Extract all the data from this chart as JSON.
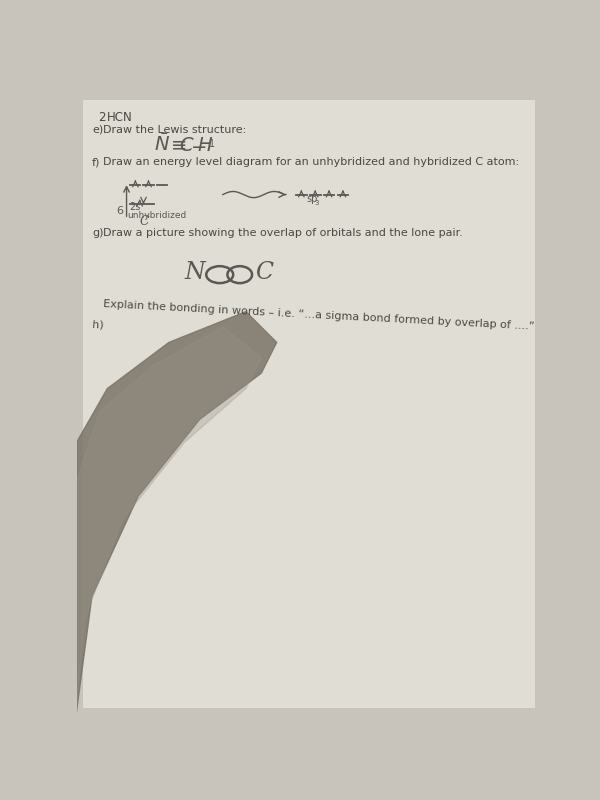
{
  "bg_color_top": "#c8c4bc",
  "bg_color_paper": "#e0ddd5",
  "shadow_color": "#7a7468",
  "text_color": "#4a4844",
  "handwriting_color": "#5a5855",
  "heading_number": "2",
  "heading_subject": "HCN",
  "part_e_label": "e)",
  "part_e_text": "Draw the Lewis structure:",
  "part_f_label": "f)",
  "part_f_text": "Draw an energy level diagram for an unhybridized and hybridized C atom:",
  "part_g_label": "g)",
  "part_g_text": "Draw a picture showing the overlap of orbitals and the lone pair.",
  "part_h_label": "h)",
  "part_h_text": "Explain the bonding in words – i.e. “...a sigma bond formed by overlap of ....”",
  "font_size_heading": 8.5,
  "font_size_body": 8.0,
  "font_size_lewis": 14,
  "font_size_orbital_label": 7,
  "font_size_energy_num": 8,
  "font_size_noc": 17,
  "font_size_handwriting": 13
}
